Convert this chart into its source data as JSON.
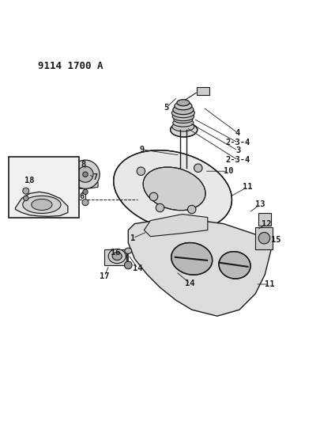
{
  "title": "9114 1700 A",
  "bg_color": "#ffffff",
  "line_color": "#1a1a1a",
  "title_fontsize": 9,
  "label_fontsize": 7.5,
  "fig_width": 4.05,
  "fig_height": 5.33
}
